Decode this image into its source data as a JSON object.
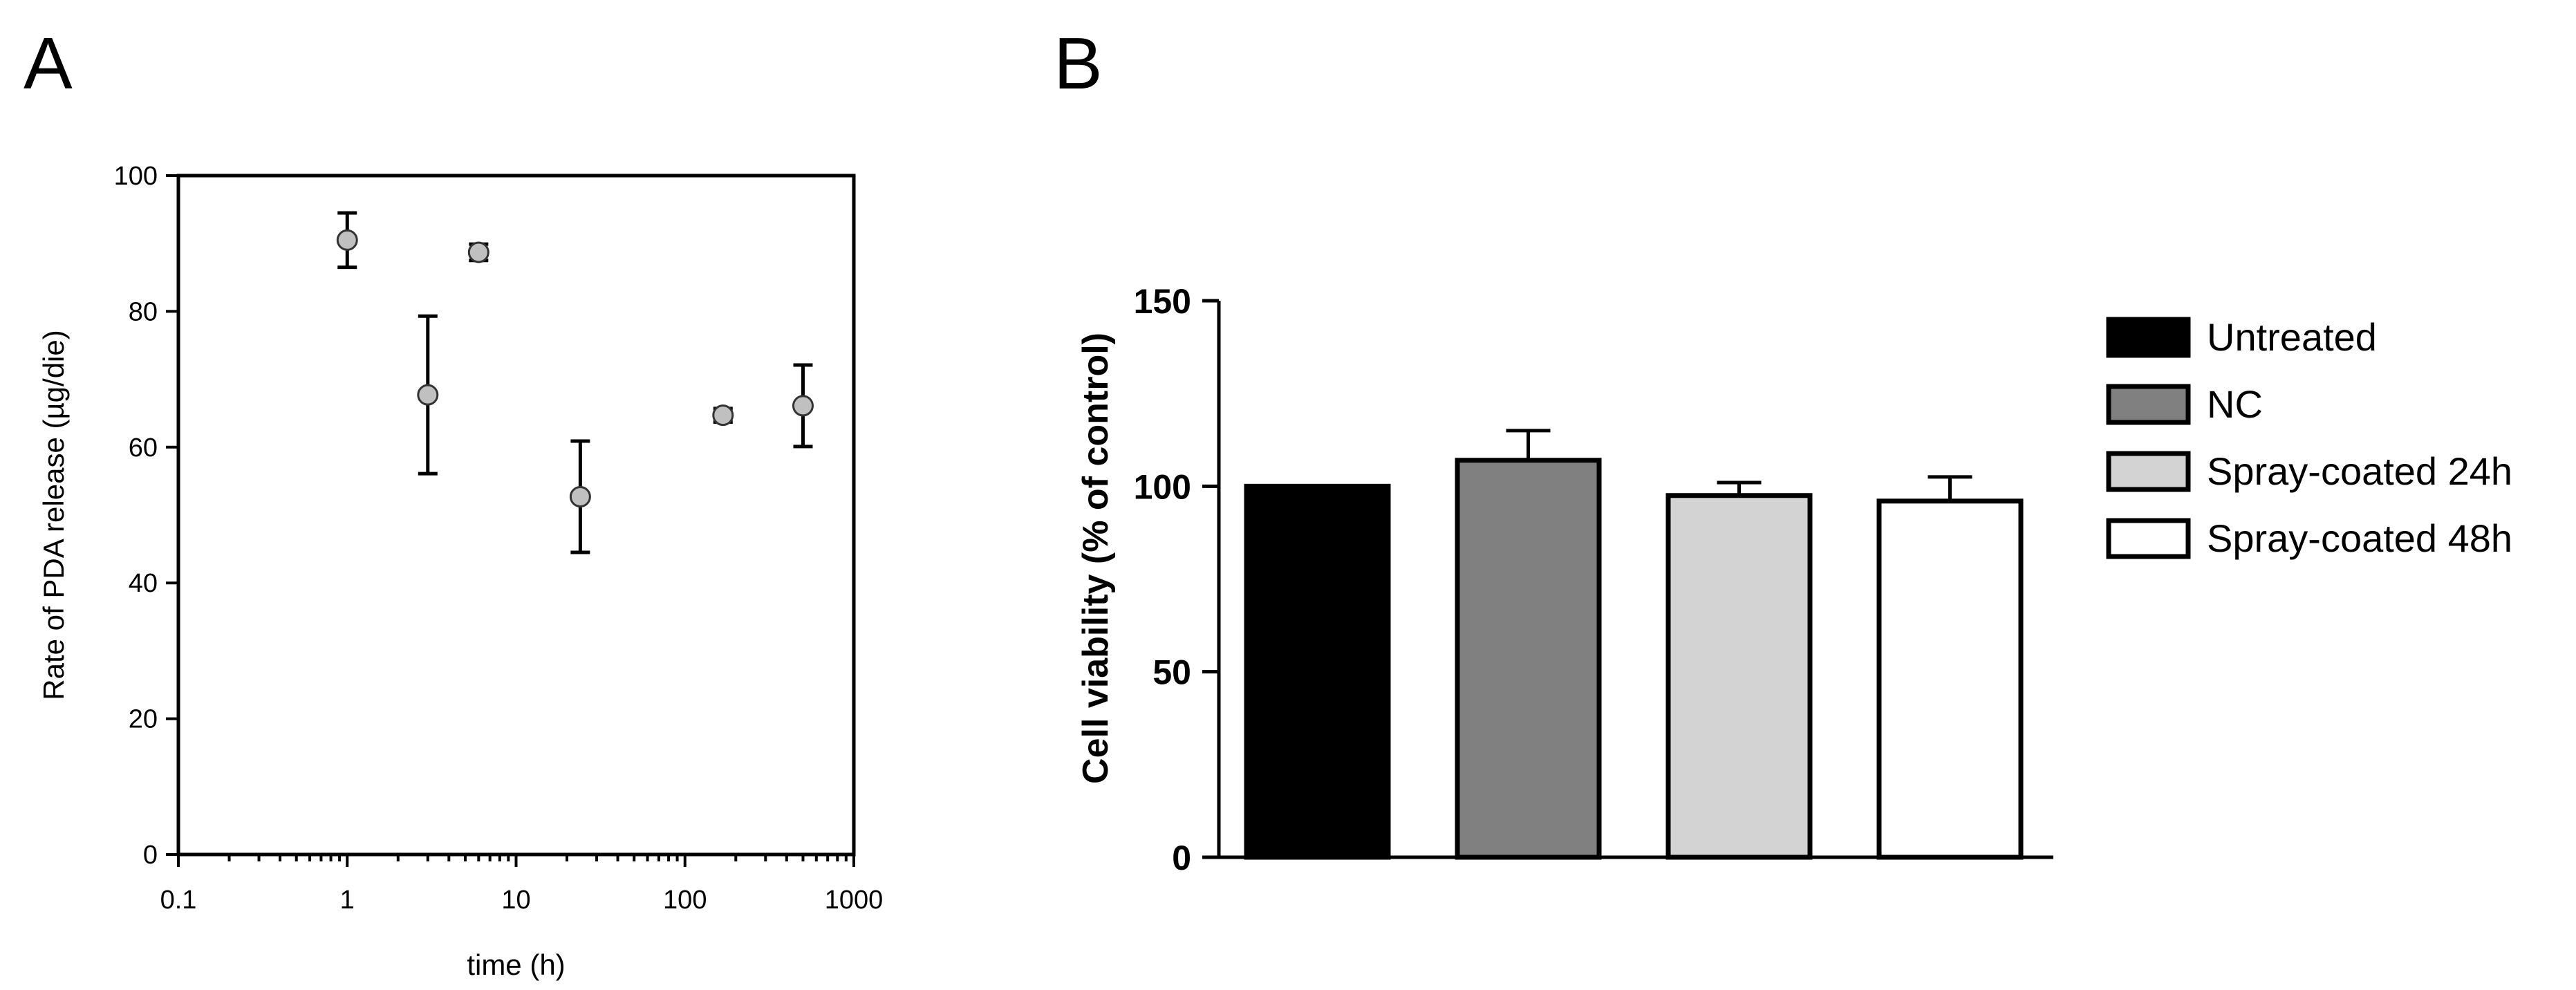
{
  "panels": {
    "a_label": "A",
    "b_label": "B"
  },
  "chart_data": [
    {
      "type": "scatter",
      "xlabel": "time (h)",
      "ylabel": "Rate of PDA release (µg/die)",
      "xscale": "log",
      "xlim": [
        0.1,
        1000
      ],
      "ylim": [
        0,
        100
      ],
      "xticks": [
        0.1,
        1,
        10,
        100,
        1000
      ],
      "xtick_labels": [
        "0.1",
        "1",
        "10",
        "100",
        "1000"
      ],
      "yticks": [
        0,
        20,
        40,
        60,
        80,
        100
      ],
      "ytick_labels": [
        "0",
        "20",
        "40",
        "60",
        "80",
        "100"
      ],
      "grid": false,
      "marker_color": "#c0c0c0",
      "points": [
        {
          "x": 1,
          "y": 90.5,
          "err": 4
        },
        {
          "x": 3,
          "y": 67.7,
          "err": 11.6
        },
        {
          "x": 6,
          "y": 88.7,
          "err": 1.2
        },
        {
          "x": 24,
          "y": 52.7,
          "err": 8.2
        },
        {
          "x": 168,
          "y": 64.7,
          "err": 1.0
        },
        {
          "x": 500,
          "y": 66.1,
          "err": 6
        }
      ]
    },
    {
      "type": "bar",
      "ylabel": "Cell viability (% of control)",
      "ylim": [
        0,
        150
      ],
      "yticks": [
        0,
        50,
        100,
        150
      ],
      "ytick_labels": [
        "0",
        "50",
        "100",
        "150"
      ],
      "grid": false,
      "legend_position": "right",
      "categories": [
        "Untreated",
        "NC",
        "Spray-coated 24h",
        "Spray-coated 48h"
      ],
      "values": [
        100,
        107,
        97.5,
        96
      ],
      "errors": [
        0,
        8,
        3.5,
        6.5
      ],
      "colors": [
        "#000000",
        "#808080",
        "#d3d3d3",
        "#ffffff"
      ]
    }
  ]
}
